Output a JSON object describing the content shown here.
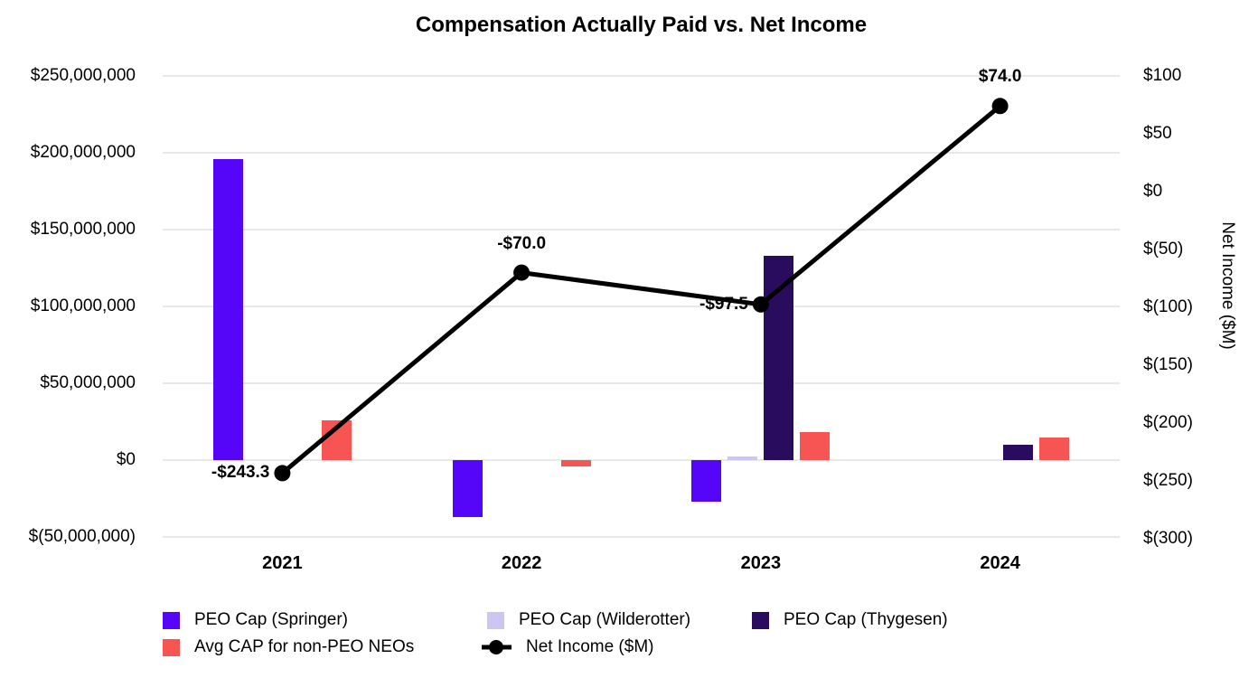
{
  "chart_data": {
    "type": "combo-bar-line",
    "title": "Compensation Actually Paid vs. Net Income",
    "categories": [
      "2021",
      "2022",
      "2023",
      "2024"
    ],
    "bar_series": [
      {
        "name": "PEO Cap (Springer)",
        "color": "#5506f8",
        "values_usd_millions": [
          196,
          -37,
          -27,
          null
        ]
      },
      {
        "name": "PEO Cap (Wilderotter)",
        "color": "#cdc6f2",
        "values_usd_millions": [
          null,
          null,
          2.3,
          null
        ]
      },
      {
        "name": "PEO Cap (Thygesen)",
        "color": "#2a0c5e",
        "values_usd_millions": [
          null,
          null,
          133,
          10
        ]
      },
      {
        "name": "Avg CAP for non-PEO NEOs",
        "color": "#f75454",
        "values_usd_millions": [
          26,
          -4,
          18,
          15
        ]
      }
    ],
    "line_series": {
      "name": "Net Income ($M)",
      "color": "#000000",
      "values": [
        -243.3,
        -70.0,
        -97.5,
        74.0
      ],
      "point_labels": [
        {
          "text": "-$243.3",
          "pos": "left"
        },
        {
          "text": "-$70.0",
          "pos": "above"
        },
        {
          "text": "-$97.5",
          "pos": "left"
        },
        {
          "text": "$74.0",
          "pos": "above"
        }
      ]
    },
    "left_axis": {
      "ticks": [
        {
          "label": "$250,000,000",
          "value": 250
        },
        {
          "label": "$200,000,000",
          "value": 200
        },
        {
          "label": "$150,000,000",
          "value": 150
        },
        {
          "label": "$100,000,000",
          "value": 100
        },
        {
          "label": "$50,000,000",
          "value": 50
        },
        {
          "label": "$0",
          "value": 0
        },
        {
          "label": "$(50,000,000)",
          "value": -50
        }
      ],
      "range_usd_millions": [
        -50,
        250
      ]
    },
    "right_axis": {
      "label": "Net Income ($M)",
      "ticks": [
        {
          "label": "$100",
          "value": 100
        },
        {
          "label": "$50",
          "value": 50
        },
        {
          "label": "$0",
          "value": 0
        },
        {
          "label": "$(50)",
          "value": -50
        },
        {
          "label": "$(100)",
          "value": -100
        },
        {
          "label": "$(150)",
          "value": -150
        },
        {
          "label": "$(200)",
          "value": -200
        },
        {
          "label": "$(250)",
          "value": -250
        },
        {
          "label": "$(300)",
          "value": -300
        }
      ],
      "range_usd_millions": [
        -300,
        100
      ]
    },
    "legend": [
      {
        "label": "PEO Cap (Springer)",
        "color": "#5506f8",
        "marker": "square"
      },
      {
        "label": "PEO Cap (Wilderotter)",
        "color": "#cdc6f2",
        "marker": "square"
      },
      {
        "label": "PEO Cap (Thygesen)",
        "color": "#2a0c5e",
        "marker": "square"
      },
      {
        "label": "Avg CAP for non-PEO NEOs",
        "color": "#f75454",
        "marker": "square"
      },
      {
        "label": "Net Income ($M)",
        "color": "#000000",
        "marker": "line-dot"
      }
    ],
    "grid": {
      "horizontal": true,
      "vertical": false,
      "color": "#e8e8e8"
    },
    "legend_position": "bottom"
  }
}
